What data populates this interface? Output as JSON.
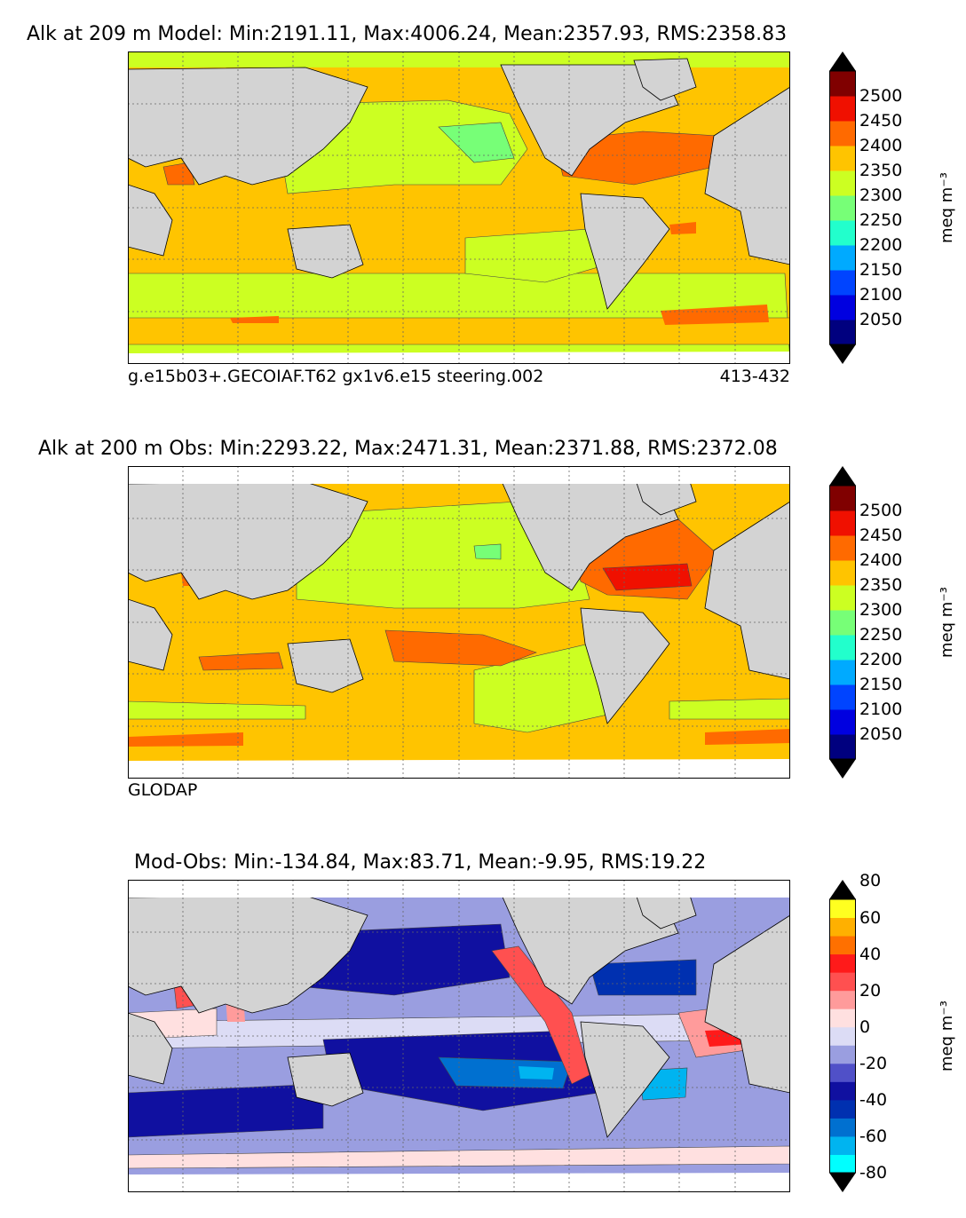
{
  "colors": {
    "land": "#d3d3d3",
    "ocean_missing": "#ffffff",
    "frame": "#000000",
    "grid": "#666666"
  },
  "panels": [
    {
      "title": "Alk at 209 m Model: Min:2191.11, Max:4006.24, Mean:2357.93, RMS:2358.83",
      "subtitle_left": "g.e15b03+.GECOIAF.T62 gx1v6.e15 steering.002",
      "subtitle_right": "413-432",
      "base_color": "#ffc400",
      "colorbar": {
        "unit": "meq m⁻³",
        "ticks": [
          "2050",
          "2100",
          "2150",
          "2200",
          "2250",
          "2300",
          "2350",
          "2400",
          "2450",
          "2500"
        ],
        "colors": [
          "#00007f",
          "#0000e0",
          "#0044ff",
          "#00aaff",
          "#22ffcc",
          "#77ff77",
          "#ccff22",
          "#ffc400",
          "#ff6a00",
          "#f01000",
          "#800000"
        ]
      }
    },
    {
      "title": "Alk at 200 m Obs: Min:2293.22, Max:2471.31, Mean:2371.88, RMS:2372.08",
      "subtitle_left": "GLODAP",
      "subtitle_right": "",
      "base_color": "#ffc400",
      "colorbar": {
        "unit": "meq m⁻³",
        "ticks": [
          "2050",
          "2100",
          "2150",
          "2200",
          "2250",
          "2300",
          "2350",
          "2400",
          "2450",
          "2500"
        ],
        "colors": [
          "#00007f",
          "#0000e0",
          "#0044ff",
          "#00aaff",
          "#22ffcc",
          "#77ff77",
          "#ccff22",
          "#ffc400",
          "#ff6a00",
          "#f01000",
          "#800000"
        ]
      }
    },
    {
      "title": "Mod-Obs: Min:-134.84, Max:83.71, Mean:-9.95, RMS:19.22",
      "subtitle_left": "",
      "subtitle_right": "",
      "base_color": "#9a9ee0",
      "colorbar": {
        "unit": "meq m⁻³",
        "ticks": [
          "-80",
          "-60",
          "-40",
          "-20",
          "0",
          "20",
          "40",
          "60",
          "80"
        ],
        "colors": [
          "#00ffff",
          "#00b4f0",
          "#0070d0",
          "#0030b0",
          "#1010a0",
          "#5050c8",
          "#9a9ee0",
          "#dcdcf5",
          "#ffe0e0",
          "#ff9b9b",
          "#ff5050",
          "#ff1a1a",
          "#ff7000",
          "#ffb000",
          "#ffff20"
        ]
      }
    }
  ]
}
